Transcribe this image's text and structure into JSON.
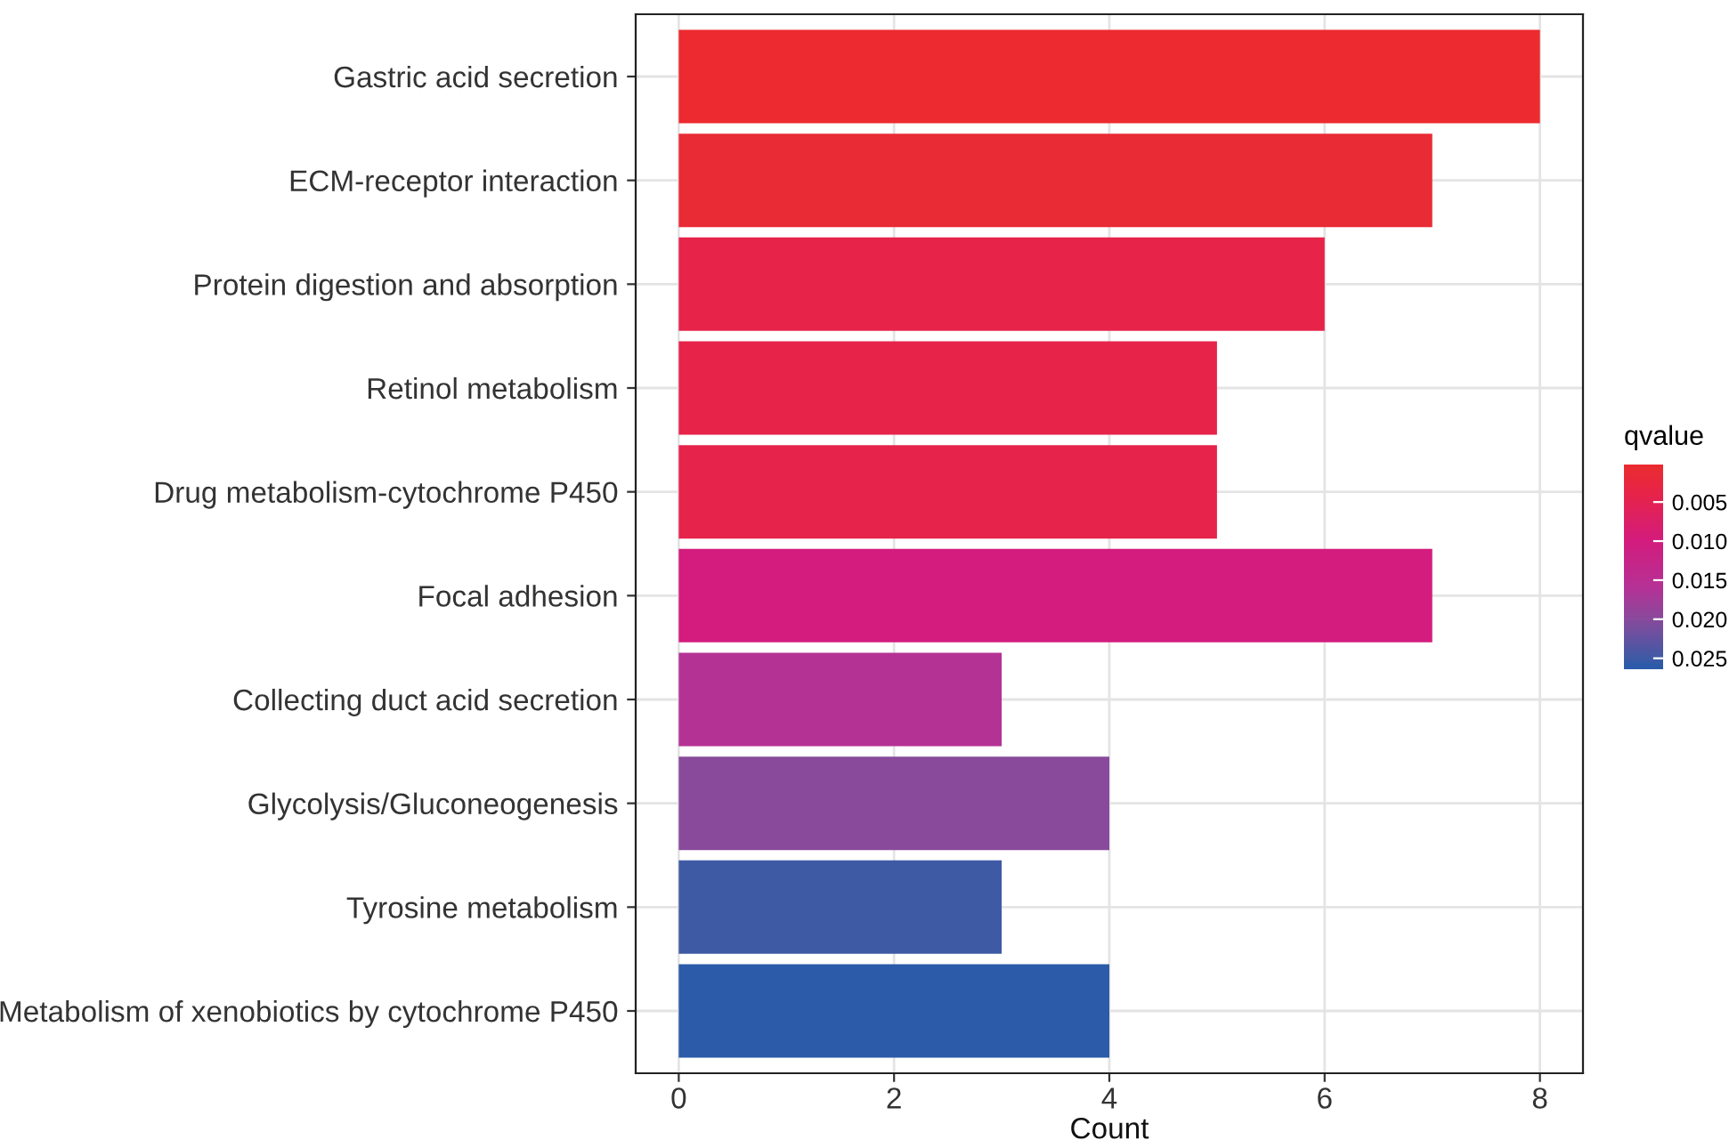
{
  "chart_data": {
    "type": "bar",
    "orientation": "horizontal",
    "xlabel": "Count",
    "clabel": "qvalue",
    "categories": [
      "Gastric acid secretion",
      "ECM-receptor interaction",
      "Protein digestion and absorption",
      "Retinol metabolism",
      "Drug metabolism-cytochrome P450",
      "Focal adhesion",
      "Collecting duct acid secretion",
      "Glycolysis/Gluconeogenesis",
      "Tyrosine metabolism",
      "Metabolism of xenobiotics by cytochrome P450"
    ],
    "values": [
      8,
      7,
      6,
      5,
      5,
      7,
      3,
      4,
      3,
      4
    ],
    "cvalues": [
      0.0003,
      0.001,
      0.004,
      0.004,
      0.0042,
      0.01,
      0.016,
      0.02,
      0.025,
      0.026
    ],
    "colors": [
      "#ec2a2f",
      "#e92b35",
      "#e7234a",
      "#e7234a",
      "#e6234b",
      "#d31c7e",
      "#b53295",
      "#894a9c",
      "#3f5aa5",
      "#2b5ba9"
    ],
    "xlim": [
      -0.4,
      8.4
    ],
    "xticks": [
      0,
      2,
      4,
      6,
      8
    ],
    "clim": [
      0.0002,
      0.0264
    ],
    "cticks": [
      {
        "value": 0.005,
        "label": "0.005"
      },
      {
        "value": 0.01,
        "label": "0.010"
      },
      {
        "value": 0.015,
        "label": "0.015"
      },
      {
        "value": 0.02,
        "label": "0.020"
      },
      {
        "value": 0.025,
        "label": "0.025"
      }
    ],
    "grid": true
  }
}
